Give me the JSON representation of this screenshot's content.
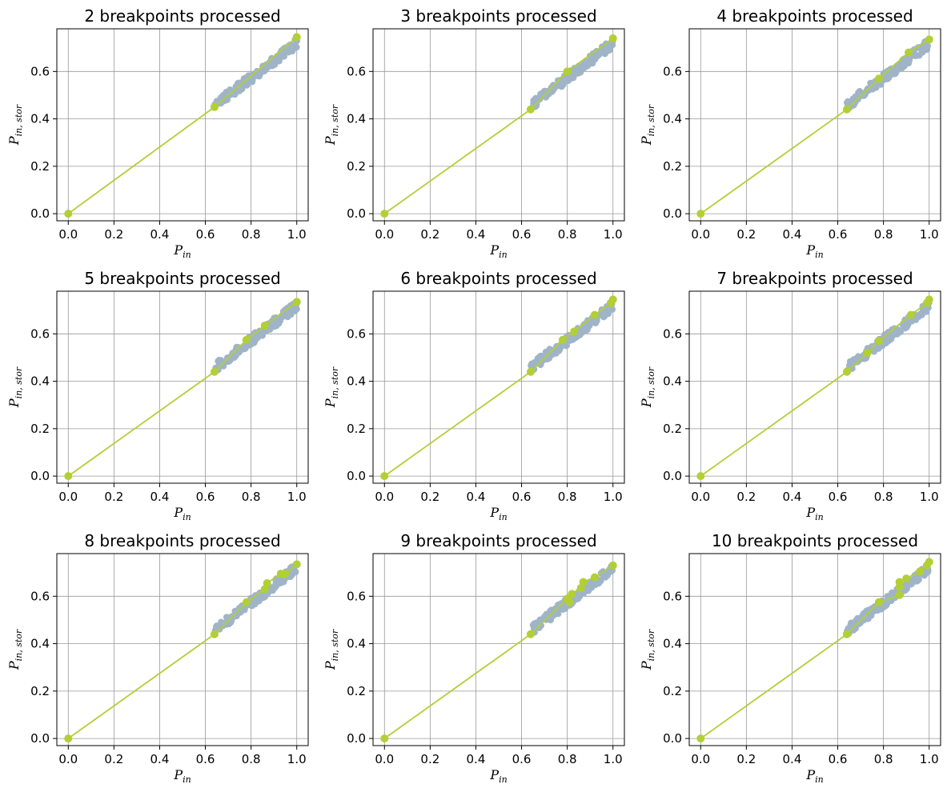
{
  "colors": {
    "scatter": "#a0b4c8",
    "fit": "#b2cf34",
    "grid": "#999999",
    "axes": "#000000"
  },
  "chart_data": [
    {
      "type": "scatter",
      "title": "2 breakpoints processed",
      "xlabel": {
        "main": "P",
        "sub": "in"
      },
      "ylabel": {
        "main": "P",
        "sub": "in, stor"
      },
      "xlim": [
        -0.05,
        1.05
      ],
      "ylim": [
        -0.03,
        0.78
      ],
      "xticks": [
        "0.0",
        "0.2",
        "0.4",
        "0.6",
        "0.8",
        "1.0"
      ],
      "yticks": [
        "0.0",
        "0.2",
        "0.4",
        "0.6"
      ],
      "grid": true,
      "series": [
        {
          "type": "scatter",
          "color_key": "scatter",
          "x_range": [
            0.64,
            1.0
          ],
          "y_line": [
            -0.015,
            0.735
          ],
          "spread": 0.02,
          "count": 130
        },
        {
          "type": "line",
          "color_key": "fit",
          "points": [
            [
              0.0,
              0.0
            ],
            [
              0.64,
              0.45
            ],
            [
              1.0,
              0.745
            ]
          ]
        }
      ]
    },
    {
      "type": "scatter",
      "title": "3 breakpoints processed",
      "xlabel": {
        "main": "P",
        "sub": "in"
      },
      "ylabel": {
        "main": "P",
        "sub": "in, stor"
      },
      "xlim": [
        -0.05,
        1.05
      ],
      "ylim": [
        -0.03,
        0.78
      ],
      "xticks": [
        "0.0",
        "0.2",
        "0.4",
        "0.6",
        "0.8",
        "1.0"
      ],
      "yticks": [
        "0.0",
        "0.2",
        "0.4",
        "0.6"
      ],
      "grid": true,
      "series": [
        {
          "type": "scatter",
          "color_key": "scatter",
          "x_range": [
            0.64,
            1.0
          ],
          "y_line": [
            -0.015,
            0.735
          ],
          "spread": 0.02,
          "count": 130
        },
        {
          "type": "line",
          "color_key": "fit",
          "points": [
            [
              0.0,
              0.0
            ],
            [
              0.64,
              0.44
            ],
            [
              0.8,
              0.6
            ],
            [
              1.0,
              0.74
            ]
          ]
        }
      ]
    },
    {
      "type": "scatter",
      "title": "4 breakpoints processed",
      "xlabel": {
        "main": "P",
        "sub": "in"
      },
      "ylabel": {
        "main": "P",
        "sub": "in, stor"
      },
      "xlim": [
        -0.05,
        1.05
      ],
      "ylim": [
        -0.03,
        0.78
      ],
      "xticks": [
        "0.0",
        "0.2",
        "0.4",
        "0.6",
        "0.8",
        "1.0"
      ],
      "yticks": [
        "0.0",
        "0.2",
        "0.4",
        "0.6"
      ],
      "grid": true,
      "series": [
        {
          "type": "scatter",
          "color_key": "scatter",
          "x_range": [
            0.64,
            1.0
          ],
          "y_line": [
            -0.015,
            0.735
          ],
          "spread": 0.02,
          "count": 130
        },
        {
          "type": "line",
          "color_key": "fit",
          "points": [
            [
              0.0,
              0.0
            ],
            [
              0.64,
              0.44
            ],
            [
              0.78,
              0.57
            ],
            [
              0.91,
              0.68
            ],
            [
              1.0,
              0.735
            ]
          ]
        }
      ]
    },
    {
      "type": "scatter",
      "title": "5 breakpoints processed",
      "xlabel": {
        "main": "P",
        "sub": "in"
      },
      "ylabel": {
        "main": "P",
        "sub": "in, stor"
      },
      "xlim": [
        -0.05,
        1.05
      ],
      "ylim": [
        -0.03,
        0.78
      ],
      "xticks": [
        "0.0",
        "0.2",
        "0.4",
        "0.6",
        "0.8",
        "1.0"
      ],
      "yticks": [
        "0.0",
        "0.2",
        "0.4",
        "0.6"
      ],
      "grid": true,
      "series": [
        {
          "type": "scatter",
          "color_key": "scatter",
          "x_range": [
            0.64,
            1.0
          ],
          "y_line": [
            -0.015,
            0.735
          ],
          "spread": 0.02,
          "count": 130
        },
        {
          "type": "line",
          "color_key": "fit",
          "points": [
            [
              0.0,
              0.0
            ],
            [
              0.64,
              0.44
            ],
            [
              0.78,
              0.575
            ],
            [
              0.86,
              0.635
            ],
            [
              1.0,
              0.735
            ]
          ]
        }
      ]
    },
    {
      "type": "scatter",
      "title": "6 breakpoints processed",
      "xlabel": {
        "main": "P",
        "sub": "in"
      },
      "ylabel": {
        "main": "P",
        "sub": "in, stor"
      },
      "xlim": [
        -0.05,
        1.05
      ],
      "ylim": [
        -0.03,
        0.78
      ],
      "xticks": [
        "0.0",
        "0.2",
        "0.4",
        "0.6",
        "0.8",
        "1.0"
      ],
      "yticks": [
        "0.0",
        "0.2",
        "0.4",
        "0.6"
      ],
      "grid": true,
      "series": [
        {
          "type": "scatter",
          "color_key": "scatter",
          "x_range": [
            0.64,
            1.0
          ],
          "y_line": [
            -0.015,
            0.735
          ],
          "spread": 0.02,
          "count": 130
        },
        {
          "type": "line",
          "color_key": "fit",
          "points": [
            [
              0.0,
              0.0
            ],
            [
              0.64,
              0.44
            ],
            [
              0.78,
              0.575
            ],
            [
              0.83,
              0.61
            ],
            [
              0.92,
              0.68
            ],
            [
              0.99,
              0.73
            ],
            [
              1.0,
              0.745
            ]
          ]
        }
      ]
    },
    {
      "type": "scatter",
      "title": "7 breakpoints processed",
      "xlabel": {
        "main": "P",
        "sub": "in"
      },
      "ylabel": {
        "main": "P",
        "sub": "in, stor"
      },
      "xlim": [
        -0.05,
        1.05
      ],
      "ylim": [
        -0.03,
        0.78
      ],
      "xticks": [
        "0.0",
        "0.2",
        "0.4",
        "0.6",
        "0.8",
        "1.0"
      ],
      "yticks": [
        "0.0",
        "0.2",
        "0.4",
        "0.6"
      ],
      "grid": true,
      "series": [
        {
          "type": "scatter",
          "color_key": "scatter",
          "x_range": [
            0.64,
            1.0
          ],
          "y_line": [
            -0.015,
            0.735
          ],
          "spread": 0.02,
          "count": 130
        },
        {
          "type": "line",
          "color_key": "fit",
          "points": [
            [
              0.0,
              0.0
            ],
            [
              0.64,
              0.44
            ],
            [
              0.73,
              0.52
            ],
            [
              0.78,
              0.57
            ],
            [
              0.92,
              0.68
            ],
            [
              0.99,
              0.73
            ],
            [
              1.0,
              0.745
            ]
          ]
        }
      ]
    },
    {
      "type": "scatter",
      "title": "8 breakpoints processed",
      "xlabel": {
        "main": "P",
        "sub": "in"
      },
      "ylabel": {
        "main": "P",
        "sub": "in, stor"
      },
      "xlim": [
        -0.05,
        1.05
      ],
      "ylim": [
        -0.03,
        0.78
      ],
      "xticks": [
        "0.0",
        "0.2",
        "0.4",
        "0.6",
        "0.8",
        "1.0"
      ],
      "yticks": [
        "0.0",
        "0.2",
        "0.4",
        "0.6"
      ],
      "grid": true,
      "series": [
        {
          "type": "scatter",
          "color_key": "scatter",
          "x_range": [
            0.64,
            1.0
          ],
          "y_line": [
            -0.015,
            0.735
          ],
          "spread": 0.02,
          "count": 130
        },
        {
          "type": "line",
          "color_key": "fit",
          "points": [
            [
              0.0,
              0.0
            ],
            [
              0.64,
              0.44
            ],
            [
              0.78,
              0.575
            ],
            [
              0.86,
              0.63
            ],
            [
              0.87,
              0.655
            ],
            [
              0.93,
              0.695
            ],
            [
              0.95,
              0.695
            ],
            [
              1.0,
              0.735
            ]
          ]
        }
      ]
    },
    {
      "type": "scatter",
      "title": "9 breakpoints processed",
      "xlabel": {
        "main": "P",
        "sub": "in"
      },
      "ylabel": {
        "main": "P",
        "sub": "in, stor"
      },
      "xlim": [
        -0.05,
        1.05
      ],
      "ylim": [
        -0.03,
        0.78
      ],
      "xticks": [
        "0.0",
        "0.2",
        "0.4",
        "0.6",
        "0.8",
        "1.0"
      ],
      "yticks": [
        "0.0",
        "0.2",
        "0.4",
        "0.6"
      ],
      "grid": true,
      "series": [
        {
          "type": "scatter",
          "color_key": "scatter",
          "x_range": [
            0.64,
            1.0
          ],
          "y_line": [
            -0.015,
            0.735
          ],
          "spread": 0.02,
          "count": 130
        },
        {
          "type": "line",
          "color_key": "fit",
          "points": [
            [
              0.0,
              0.0
            ],
            [
              0.64,
              0.44
            ],
            [
              0.8,
              0.59
            ],
            [
              0.81,
              0.575
            ],
            [
              0.82,
              0.61
            ],
            [
              0.86,
              0.635
            ],
            [
              0.87,
              0.66
            ],
            [
              0.92,
              0.68
            ],
            [
              1.0,
              0.73
            ]
          ]
        }
      ]
    },
    {
      "type": "scatter",
      "title": "10 breakpoints processed",
      "xlabel": {
        "main": "P",
        "sub": "in"
      },
      "ylabel": {
        "main": "P",
        "sub": "in, stor"
      },
      "xlim": [
        -0.05,
        1.05
      ],
      "ylim": [
        -0.03,
        0.78
      ],
      "xticks": [
        "0.0",
        "0.2",
        "0.4",
        "0.6",
        "0.8",
        "1.0"
      ],
      "yticks": [
        "0.0",
        "0.2",
        "0.4",
        "0.6"
      ],
      "grid": true,
      "series": [
        {
          "type": "scatter",
          "color_key": "scatter",
          "x_range": [
            0.64,
            1.0
          ],
          "y_line": [
            -0.015,
            0.735
          ],
          "spread": 0.02,
          "count": 130
        },
        {
          "type": "line",
          "color_key": "fit",
          "points": [
            [
              0.0,
              0.0
            ],
            [
              0.64,
              0.44
            ],
            [
              0.78,
              0.575
            ],
            [
              0.87,
              0.605
            ],
            [
              0.87,
              0.64
            ],
            [
              0.87,
              0.66
            ],
            [
              0.9,
              0.675
            ],
            [
              0.96,
              0.705
            ],
            [
              0.99,
              0.73
            ],
            [
              1.0,
              0.745
            ]
          ]
        }
      ]
    }
  ]
}
